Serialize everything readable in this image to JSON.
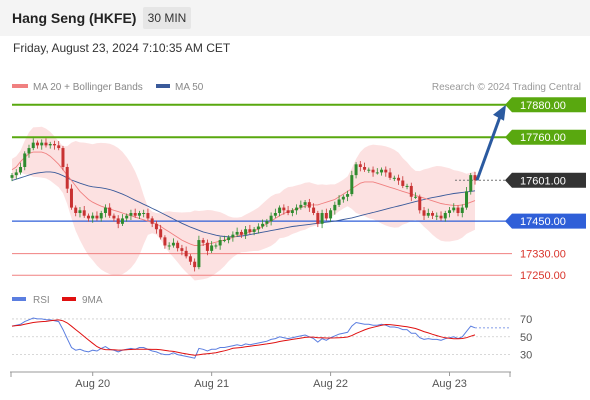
{
  "header": {
    "title": "Hang Seng (HKFE)",
    "timeframe": "30 MIN",
    "datetime": "Friday, August 23, 2024 7:10:35 AM CET"
  },
  "legend": {
    "ma20_label": "MA 20 + Bollinger Bands",
    "ma50_label": "MA 50",
    "credit": "Research © 2024 Trading Central"
  },
  "rsi_legend": {
    "rsi_label": "RSI",
    "ma_label": "9MA"
  },
  "colors": {
    "ma20": "#f08080",
    "ma50": "#3a5a9a",
    "bollinger_fill": "#fbdcdc",
    "candle_up": "#2e8b2e",
    "candle_down": "#c83232",
    "resistance": "#59a80f",
    "current": "#333333",
    "support": "#2f5fd8",
    "minor": "#f08080",
    "arrow": "#2b5aa0",
    "rsi": "#5b7ee0",
    "rsi_ma": "#e01010"
  },
  "levels": [
    {
      "price": 17880,
      "label": "17880.00",
      "type": "resistance"
    },
    {
      "price": 17760,
      "label": "17760.00",
      "type": "resistance"
    },
    {
      "price": 17601,
      "label": "17601.00",
      "type": "current"
    },
    {
      "price": 17450,
      "label": "17450.00",
      "type": "support"
    },
    {
      "price": 17330,
      "label": "17330.00",
      "type": "minor"
    },
    {
      "price": 17250,
      "label": "17250.00",
      "type": "minor"
    }
  ],
  "chart_data": {
    "type": "candlestick",
    "title": "Hang Seng (HKFE)",
    "interval": "30 MIN",
    "x_ticks": [
      "Aug 20",
      "Aug 21",
      "Aug 22",
      "Aug 23"
    ],
    "price_ylim": [
      17225,
      17905
    ],
    "close": [
      17620,
      17630,
      17650,
      17700,
      17720,
      17740,
      17730,
      17740,
      17730,
      17735,
      17730,
      17720,
      17650,
      17570,
      17500,
      17480,
      17490,
      17470,
      17460,
      17470,
      17460,
      17480,
      17500,
      17470,
      17460,
      17440,
      17460,
      17470,
      17480,
      17470,
      17480,
      17480,
      17460,
      17440,
      17420,
      17390,
      17360,
      17360,
      17370,
      17350,
      17340,
      17320,
      17300,
      17280,
      17380,
      17370,
      17340,
      17360,
      17360,
      17380,
      17380,
      17390,
      17400,
      17410,
      17400,
      17420,
      17410,
      17420,
      17430,
      17440,
      17450,
      17470,
      17480,
      17500,
      17490,
      17480,
      17490,
      17500,
      17510,
      17520,
      17500,
      17480,
      17440,
      17480,
      17460,
      17490,
      17510,
      17530,
      17540,
      17550,
      17620,
      17660,
      17650,
      17640,
      17640,
      17630,
      17630,
      17640,
      17630,
      17610,
      17610,
      17600,
      17580,
      17580,
      17540,
      17540,
      17490,
      17470,
      17480,
      17470,
      17470,
      17460,
      17480,
      17490,
      17500,
      17480,
      17500,
      17560,
      17620,
      17601
    ],
    "ma20": [
      17640,
      17650,
      17670,
      17685,
      17700,
      17705,
      17705,
      17705,
      17700,
      17690,
      17675,
      17660,
      17640,
      17620,
      17600,
      17580,
      17560,
      17545,
      17530,
      17520,
      17512,
      17505,
      17500,
      17495,
      17490,
      17485,
      17480,
      17475,
      17470,
      17465,
      17460,
      17455,
      17450,
      17445,
      17440,
      17430,
      17420,
      17410,
      17400,
      17390,
      17380,
      17372,
      17365,
      17360,
      17360,
      17362,
      17365,
      17368,
      17372,
      17376,
      17380,
      17385,
      17390,
      17395,
      17400,
      17405,
      17410,
      17415,
      17420,
      17430,
      17440,
      17450,
      17460,
      17470,
      17478,
      17485,
      17490,
      17495,
      17500,
      17505,
      17510,
      17510,
      17510,
      17515,
      17520,
      17525,
      17530,
      17540,
      17550,
      17560,
      17570,
      17580,
      17590,
      17595,
      17595,
      17595,
      17590,
      17585,
      17580,
      17575,
      17570,
      17565,
      17560,
      17555,
      17550,
      17545,
      17540,
      17535,
      17530,
      17525,
      17520,
      17515,
      17512,
      17510,
      17508,
      17508,
      17510,
      17514,
      17520,
      17526
    ],
    "ma50": [
      17600,
      17605,
      17610,
      17615,
      17620,
      17625,
      17628,
      17630,
      17632,
      17632,
      17630,
      17625,
      17618,
      17610,
      17602,
      17596,
      17590,
      17585,
      17580,
      17577,
      17575,
      17573,
      17570,
      17567,
      17562,
      17556,
      17550,
      17543,
      17535,
      17527,
      17520,
      17512,
      17505,
      17497,
      17490,
      17482,
      17474,
      17466,
      17458,
      17450,
      17442,
      17435,
      17428,
      17422,
      17416,
      17410,
      17406,
      17402,
      17398,
      17395,
      17393,
      17392,
      17392,
      17393,
      17395,
      17397,
      17400,
      17403,
      17406,
      17409,
      17412,
      17415,
      17418,
      17421,
      17424,
      17427,
      17430,
      17432,
      17434,
      17436,
      17438,
      17440,
      17442,
      17444,
      17446,
      17448,
      17450,
      17453,
      17456,
      17459,
      17462,
      17466,
      17470,
      17474,
      17478,
      17482,
      17486,
      17490,
      17494,
      17498,
      17502,
      17506,
      17510,
      17514,
      17518,
      17522,
      17526,
      17530,
      17534,
      17537,
      17540,
      17543,
      17546,
      17549,
      17552,
      17554,
      17556,
      17558,
      17560,
      17562
    ],
    "rsi": [
      62,
      63,
      64,
      67,
      69,
      71,
      70,
      70,
      69,
      69,
      68,
      67,
      58,
      48,
      38,
      35,
      36,
      34,
      33,
      35,
      34,
      37,
      39,
      36,
      35,
      33,
      35,
      36,
      37,
      36,
      38,
      38,
      36,
      34,
      33,
      31,
      30,
      30,
      32,
      30,
      29,
      28,
      27,
      26,
      37,
      36,
      34,
      36,
      36,
      38,
      38,
      39,
      40,
      41,
      40,
      42,
      41,
      42,
      43,
      44,
      45,
      47,
      48,
      50,
      49,
      48,
      49,
      50,
      51,
      52,
      50,
      48,
      44,
      48,
      46,
      49,
      51,
      53,
      54,
      55,
      62,
      66,
      65,
      64,
      64,
      63,
      63,
      64,
      63,
      61,
      61,
      60,
      58,
      58,
      54,
      54,
      49,
      47,
      48,
      47,
      47,
      46,
      48,
      49,
      50,
      48,
      50,
      56,
      62,
      60
    ],
    "rsi_ylim": [
      15,
      80
    ],
    "rsi_levels": [
      70,
      50,
      30
    ],
    "rsi_level_labels": [
      "70",
      "50",
      "30"
    ],
    "forecast_arrow": {
      "from": 17601,
      "to": 17880
    }
  }
}
